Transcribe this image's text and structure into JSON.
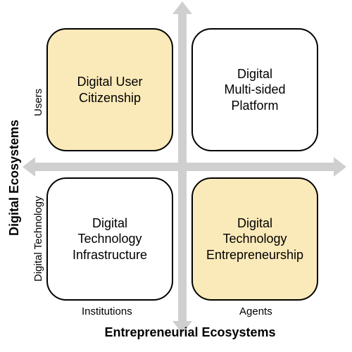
{
  "diagram": {
    "type": "quadrant-matrix",
    "background_color": "#ffffff",
    "axis_color": "#cfcfcf",
    "border_color": "#000000",
    "highlight_fill": "#fbeab9",
    "plain_fill": "#ffffff",
    "border_radius": 28,
    "border_width": 2,
    "label_fontsize": 18,
    "tick_fontsize": 15,
    "title_fontsize": 18,
    "title_fontweight": "bold",
    "y_axis": {
      "title": "Digital Ecosystems",
      "top_label": "Users",
      "bottom_label": "Digital Technology"
    },
    "x_axis": {
      "title": "Entrepreneurial Ecosystems",
      "left_label": "Institutions",
      "right_label": "Agents"
    },
    "quadrants": {
      "top_left": {
        "label": "Digital User\nCitizenship",
        "highlighted": true
      },
      "top_right": {
        "label": "Digital\nMulti-sided\nPlatform",
        "highlighted": false
      },
      "bottom_left": {
        "label": "Digital\nTechnology\nInfrastructure",
        "highlighted": false
      },
      "bottom_right": {
        "label": "Digital\nTechnology\nEntrepreneurship",
        "highlighted": true
      }
    }
  }
}
